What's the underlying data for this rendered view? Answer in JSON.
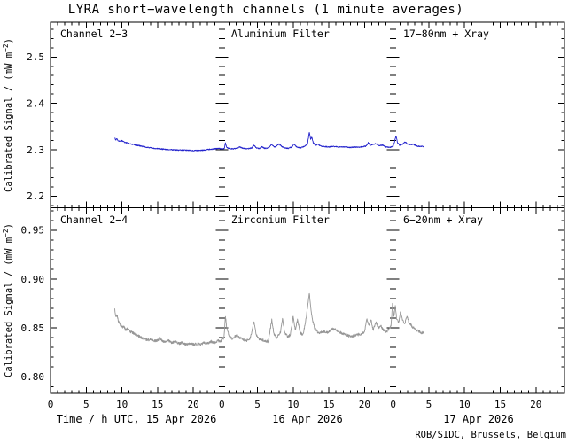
{
  "title": "LYRA short−wavelength channels (1 minute averages)",
  "credit": "ROB/SIDC, Brussels, Belgium",
  "x_axis": {
    "tick_labels": [
      "0",
      "5",
      "10",
      "15",
      "20"
    ],
    "day_labels": [
      "Time / h UTC, 15 Apr 2026",
      "16 Apr 2026",
      "17 Apr 2026"
    ]
  },
  "y_axis": {
    "label_prefix": "Calibrated Signal / (mW m",
    "label_exponent": "−2",
    "label_suffix": ")",
    "top_tick_labels": [
      "2.2",
      "2.3",
      "2.4",
      "2.5"
    ],
    "bottom_tick_labels": [
      "0.80",
      "0.85",
      "0.90",
      "0.95"
    ]
  },
  "chart_data": {
    "type": "line",
    "title": "LYRA short−wavelength channels (1 minute averages)",
    "x_unit": "hours UTC, panels of 24 h for 15, 16, 17 Apr 2026",
    "x_range_hours": [
      0,
      72
    ],
    "x_major_tick_step_h": 5,
    "x_minor_tick_step_h": 1,
    "legend": "none",
    "grid": false,
    "panels": [
      {
        "row": "top",
        "labels": [
          "Channel 2−3",
          "Aluminium Filter",
          "17−80nm + Xray"
        ],
        "ylabel": "Calibrated Signal / (mW m−2)",
        "ylim": [
          2.175,
          2.575
        ],
        "yticks": [
          2.2,
          2.3,
          2.4,
          2.5
        ],
        "y_minor_step": 0.02,
        "series": {
          "name": "Channel 2−3 (Aluminium filter, 17−80nm + Xray)",
          "color": "#2222cc",
          "points_hour_value": [
            [
              9.0,
              2.3255
            ],
            [
              9.15,
              2.3215
            ],
            [
              9.3,
              2.3235
            ],
            [
              9.5,
              2.3195
            ],
            [
              9.8,
              2.3185
            ],
            [
              10.0,
              2.3195
            ],
            [
              10.3,
              2.3165
            ],
            [
              10.8,
              2.3145
            ],
            [
              11.3,
              2.3125
            ],
            [
              12.0,
              2.31
            ],
            [
              12.8,
              2.3075
            ],
            [
              13.5,
              2.3055
            ],
            [
              14.3,
              2.3035
            ],
            [
              15.0,
              2.3025
            ],
            [
              16.0,
              2.301
            ],
            [
              17.0,
              2.3
            ],
            [
              18.0,
              2.2995
            ],
            [
              19.0,
              2.299
            ],
            [
              20.0,
              2.2985
            ],
            [
              20.8,
              2.2985
            ],
            [
              21.5,
              2.2995
            ],
            [
              22.3,
              2.301
            ],
            [
              23.0,
              2.302
            ],
            [
              23.6,
              2.303
            ],
            [
              24.0,
              2.302
            ],
            [
              24.35,
              2.303
            ],
            [
              24.5,
              2.315
            ],
            [
              24.65,
              2.306
            ],
            [
              25.0,
              2.303
            ],
            [
              25.5,
              2.302
            ],
            [
              26.0,
              2.303
            ],
            [
              26.5,
              2.306
            ],
            [
              27.0,
              2.303
            ],
            [
              27.5,
              2.302
            ],
            [
              28.2,
              2.304
            ],
            [
              28.5,
              2.31
            ],
            [
              28.8,
              2.304
            ],
            [
              29.3,
              2.303
            ],
            [
              29.6,
              2.307
            ],
            [
              30.0,
              2.303
            ],
            [
              30.5,
              2.304
            ],
            [
              31.0,
              2.312
            ],
            [
              31.3,
              2.306
            ],
            [
              31.7,
              2.308
            ],
            [
              32.0,
              2.313
            ],
            [
              32.4,
              2.307
            ],
            [
              32.8,
              2.304
            ],
            [
              33.3,
              2.303
            ],
            [
              33.8,
              2.306
            ],
            [
              34.1,
              2.312
            ],
            [
              34.5,
              2.306
            ],
            [
              35.0,
              2.304
            ],
            [
              35.5,
              2.307
            ],
            [
              35.8,
              2.31
            ],
            [
              36.0,
              2.312
            ],
            [
              36.25,
              2.338
            ],
            [
              36.45,
              2.322
            ],
            [
              36.6,
              2.328
            ],
            [
              36.8,
              2.315
            ],
            [
              37.1,
              2.31
            ],
            [
              37.5,
              2.312
            ],
            [
              37.8,
              2.308
            ],
            [
              38.3,
              2.307
            ],
            [
              39.0,
              2.306
            ],
            [
              39.7,
              2.307
            ],
            [
              40.5,
              2.306
            ],
            [
              41.3,
              2.306
            ],
            [
              42.0,
              2.305
            ],
            [
              42.8,
              2.306
            ],
            [
              43.5,
              2.306
            ],
            [
              44.2,
              2.308
            ],
            [
              44.5,
              2.315
            ],
            [
              44.8,
              2.31
            ],
            [
              45.2,
              2.312
            ],
            [
              45.6,
              2.313
            ],
            [
              46.0,
              2.309
            ],
            [
              46.5,
              2.31
            ],
            [
              47.0,
              2.306
            ],
            [
              47.5,
              2.305
            ],
            [
              48.0,
              2.308
            ],
            [
              48.2,
              2.318
            ],
            [
              48.4,
              2.33
            ],
            [
              48.6,
              2.316
            ],
            [
              48.9,
              2.31
            ],
            [
              49.3,
              2.312
            ],
            [
              49.7,
              2.317
            ],
            [
              50.0,
              2.313
            ],
            [
              50.4,
              2.311
            ],
            [
              50.8,
              2.312
            ],
            [
              51.2,
              2.309
            ],
            [
              51.6,
              2.3075
            ],
            [
              52.0,
              2.307
            ],
            [
              52.3,
              2.307
            ]
          ]
        }
      },
      {
        "row": "bottom",
        "labels": [
          "Channel 2−4",
          "Zirconium Filter",
          "6−20nm + Xray"
        ],
        "ylabel": "Calibrated Signal / (mW m−2)",
        "ylim": [
          0.783,
          0.973
        ],
        "yticks": [
          0.8,
          0.85,
          0.9,
          0.95
        ],
        "y_minor_step": 0.01,
        "series": {
          "name": "Channel 2−4 (Zirconium filter, 6−20nm + Xray)",
          "color": "#969696",
          "points_hour_value": [
            [
              9.0,
              0.869
            ],
            [
              9.15,
              0.862
            ],
            [
              9.3,
              0.864
            ],
            [
              9.5,
              0.857
            ],
            [
              9.8,
              0.853
            ],
            [
              10.0,
              0.851
            ],
            [
              10.3,
              0.851
            ],
            [
              10.5,
              0.848
            ],
            [
              10.8,
              0.849
            ],
            [
              11.2,
              0.846
            ],
            [
              11.6,
              0.845
            ],
            [
              12.0,
              0.843
            ],
            [
              12.5,
              0.841
            ],
            [
              13.0,
              0.839
            ],
            [
              13.5,
              0.838
            ],
            [
              14.0,
              0.838
            ],
            [
              14.5,
              0.837
            ],
            [
              15.0,
              0.837
            ],
            [
              15.3,
              0.84
            ],
            [
              15.6,
              0.837
            ],
            [
              16.0,
              0.836
            ],
            [
              16.5,
              0.837
            ],
            [
              17.0,
              0.835
            ],
            [
              17.5,
              0.836
            ],
            [
              18.0,
              0.834
            ],
            [
              18.5,
              0.835
            ],
            [
              19.0,
              0.833
            ],
            [
              19.5,
              0.834
            ],
            [
              20.0,
              0.833
            ],
            [
              20.5,
              0.834
            ],
            [
              21.0,
              0.833
            ],
            [
              21.5,
              0.835
            ],
            [
              22.0,
              0.834
            ],
            [
              22.5,
              0.836
            ],
            [
              23.0,
              0.835
            ],
            [
              23.5,
              0.837
            ],
            [
              23.8,
              0.836
            ],
            [
              24.0,
              0.838
            ],
            [
              24.3,
              0.84
            ],
            [
              24.5,
              0.862
            ],
            [
              24.7,
              0.85
            ],
            [
              25.0,
              0.842
            ],
            [
              25.4,
              0.839
            ],
            [
              25.8,
              0.841
            ],
            [
              26.2,
              0.843
            ],
            [
              26.5,
              0.84
            ],
            [
              27.0,
              0.838
            ],
            [
              27.5,
              0.837
            ],
            [
              28.0,
              0.84
            ],
            [
              28.5,
              0.856
            ],
            [
              28.8,
              0.843
            ],
            [
              29.2,
              0.839
            ],
            [
              29.6,
              0.838
            ],
            [
              30.0,
              0.837
            ],
            [
              30.5,
              0.836
            ],
            [
              31.0,
              0.858
            ],
            [
              31.3,
              0.844
            ],
            [
              31.7,
              0.84
            ],
            [
              32.2,
              0.845
            ],
            [
              32.5,
              0.86
            ],
            [
              32.8,
              0.845
            ],
            [
              33.2,
              0.841
            ],
            [
              33.6,
              0.843
            ],
            [
              34.0,
              0.862
            ],
            [
              34.3,
              0.848
            ],
            [
              34.6,
              0.858
            ],
            [
              35.0,
              0.845
            ],
            [
              35.4,
              0.843
            ],
            [
              35.7,
              0.856
            ],
            [
              36.0,
              0.87
            ],
            [
              36.25,
              0.886
            ],
            [
              36.5,
              0.868
            ],
            [
              36.7,
              0.858
            ],
            [
              37.0,
              0.85
            ],
            [
              37.4,
              0.846
            ],
            [
              37.8,
              0.845
            ],
            [
              38.2,
              0.847
            ],
            [
              38.6,
              0.845
            ],
            [
              39.0,
              0.846
            ],
            [
              39.5,
              0.849
            ],
            [
              40.0,
              0.848
            ],
            [
              40.5,
              0.846
            ],
            [
              41.0,
              0.844
            ],
            [
              41.5,
              0.843
            ],
            [
              42.0,
              0.841
            ],
            [
              42.5,
              0.842
            ],
            [
              43.0,
              0.843
            ],
            [
              43.5,
              0.844
            ],
            [
              44.0,
              0.846
            ],
            [
              44.3,
              0.86
            ],
            [
              44.6,
              0.852
            ],
            [
              44.9,
              0.858
            ],
            [
              45.2,
              0.848
            ],
            [
              45.6,
              0.856
            ],
            [
              45.9,
              0.85
            ],
            [
              46.3,
              0.852
            ],
            [
              46.6,
              0.848
            ],
            [
              47.0,
              0.846
            ],
            [
              47.4,
              0.848
            ],
            [
              47.7,
              0.852
            ],
            [
              47.9,
              0.874
            ],
            [
              48.1,
              0.862
            ],
            [
              48.3,
              0.872
            ],
            [
              48.5,
              0.858
            ],
            [
              48.8,
              0.856
            ],
            [
              49.0,
              0.866
            ],
            [
              49.3,
              0.858
            ],
            [
              49.6,
              0.854
            ],
            [
              49.9,
              0.862
            ],
            [
              50.2,
              0.856
            ],
            [
              50.6,
              0.852
            ],
            [
              51.0,
              0.849
            ],
            [
              51.5,
              0.847
            ],
            [
              52.0,
              0.845
            ],
            [
              52.3,
              0.845
            ]
          ]
        }
      }
    ]
  }
}
